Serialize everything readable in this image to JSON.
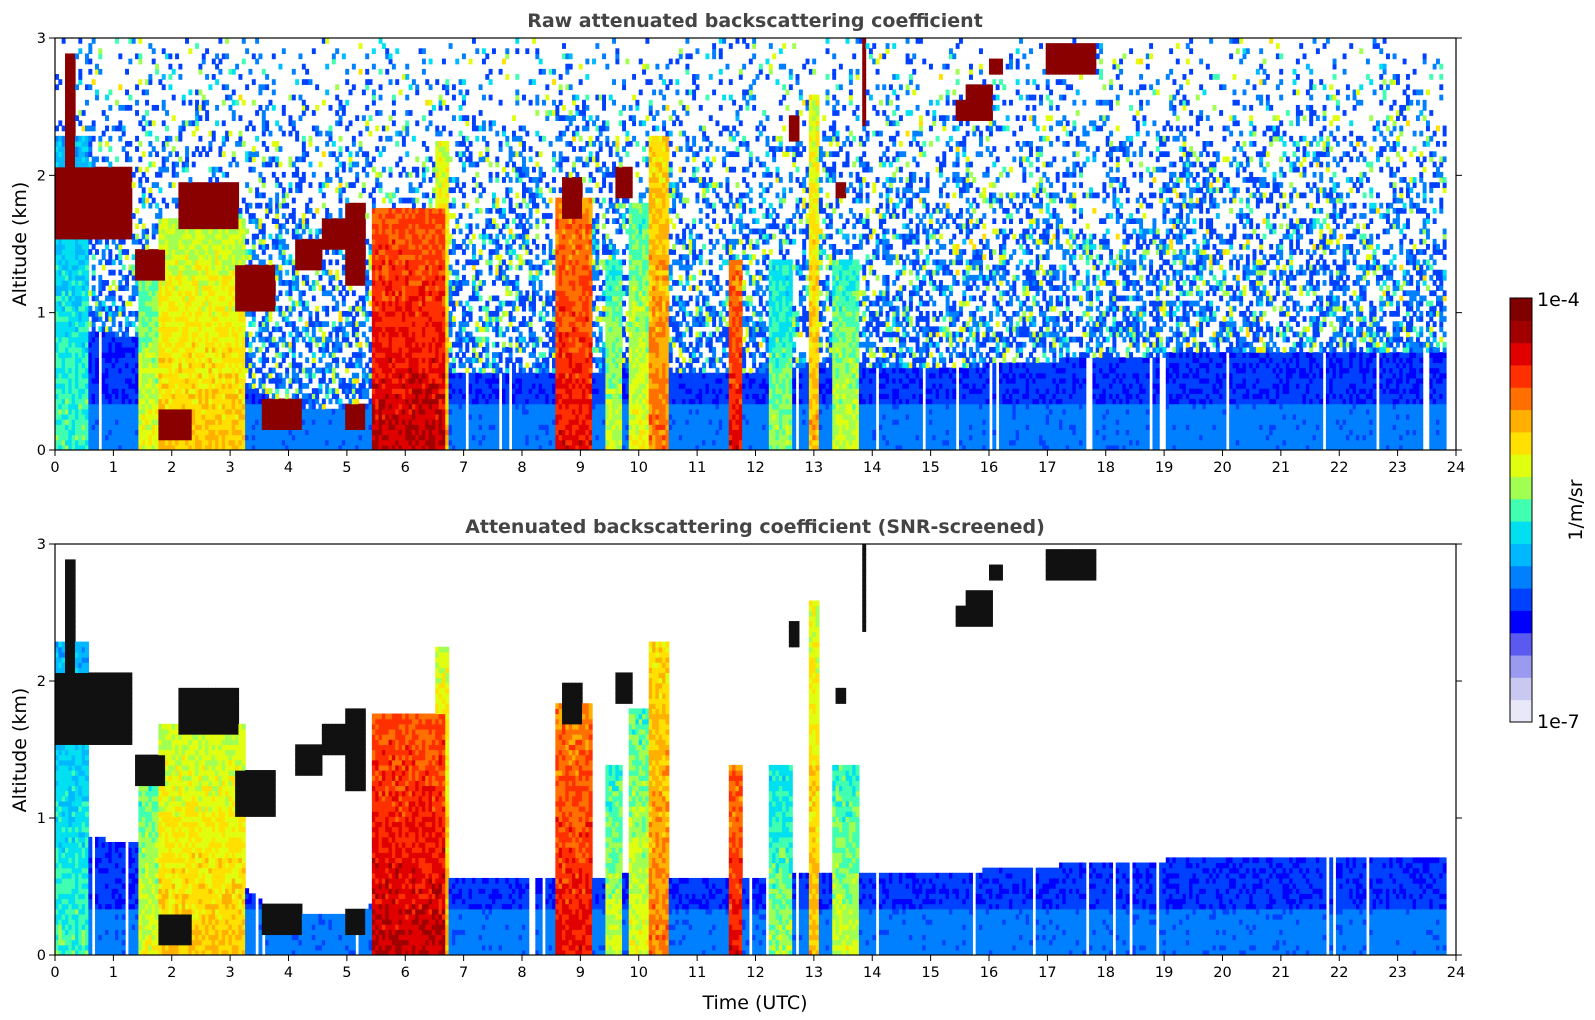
{
  "chart_data": [
    {
      "type": "heatmap",
      "title": "Raw attenuated backscattering coefficient",
      "xlabel": "",
      "ylabel": "Altitude (km)",
      "xlim": [
        0,
        24
      ],
      "ylim": [
        0,
        3
      ],
      "xticks": [
        "0",
        "1",
        "2",
        "3",
        "4",
        "5",
        "6",
        "7",
        "8",
        "9",
        "10",
        "11",
        "12",
        "13",
        "14",
        "15",
        "16",
        "17",
        "18",
        "19",
        "20",
        "21",
        "22",
        "23",
        "24"
      ],
      "yticks": [
        "0",
        "1",
        "2",
        "3"
      ],
      "screened": false,
      "data_end_hour": 23.85,
      "boundary_layer_top_km": [
        [
          0,
          0.9
        ],
        [
          1.5,
          0.8
        ],
        [
          3.2,
          0.5
        ],
        [
          4,
          0.3
        ],
        [
          5,
          0.3
        ],
        [
          6.7,
          0.55
        ],
        [
          8,
          0.55
        ],
        [
          9,
          0.55
        ],
        [
          10,
          0.6
        ],
        [
          11,
          0.55
        ],
        [
          12,
          0.55
        ],
        [
          13,
          0.6
        ],
        [
          14,
          0.6
        ],
        [
          16,
          0.62
        ],
        [
          18,
          0.68
        ],
        [
          21,
          0.72
        ],
        [
          23.9,
          0.72
        ]
      ],
      "aerosol_columns": [
        {
          "x0": 0.0,
          "x1": 0.55,
          "top_km": 2.3,
          "level": 0.5
        },
        {
          "x0": 1.45,
          "x1": 1.75,
          "top_km": 1.3,
          "level": 0.62
        },
        {
          "x0": 1.75,
          "x1": 3.25,
          "top_km": 1.7,
          "level": 0.7
        },
        {
          "x0": 5.45,
          "x1": 6.7,
          "top_km": 1.75,
          "level": 0.92
        },
        {
          "x0": 6.5,
          "x1": 6.75,
          "top_km": 2.25,
          "level": 0.72
        },
        {
          "x0": 8.6,
          "x1": 9.2,
          "top_km": 1.85,
          "level": 0.88
        },
        {
          "x0": 9.45,
          "x1": 9.7,
          "top_km": 1.4,
          "level": 0.6
        },
        {
          "x0": 9.85,
          "x1": 10.45,
          "top_km": 1.8,
          "level": 0.62
        },
        {
          "x0": 10.2,
          "x1": 10.5,
          "top_km": 2.3,
          "level": 0.78
        },
        {
          "x0": 11.55,
          "x1": 11.75,
          "top_km": 1.4,
          "level": 0.88
        },
        {
          "x0": 12.25,
          "x1": 12.6,
          "top_km": 1.4,
          "level": 0.56
        },
        {
          "x0": 12.9,
          "x1": 13.1,
          "top_km": 2.6,
          "level": 0.72
        },
        {
          "x0": 13.3,
          "x1": 13.75,
          "top_km": 1.4,
          "level": 0.6
        }
      ],
      "cloud_patches": [
        {
          "x0": 0.2,
          "x1": 0.35,
          "y0": 1.7,
          "y1": 2.9
        },
        {
          "x0": 0.0,
          "x1": 1.3,
          "y0": 1.55,
          "y1": 2.05
        },
        {
          "x0": 1.4,
          "x1": 1.9,
          "y0": 1.25,
          "y1": 1.45
        },
        {
          "x0": 2.1,
          "x1": 3.15,
          "y0": 1.6,
          "y1": 1.95
        },
        {
          "x0": 3.1,
          "x1": 3.75,
          "y0": 1.0,
          "y1": 1.35
        },
        {
          "x0": 1.75,
          "x1": 2.35,
          "y0": 0.08,
          "y1": 0.3
        },
        {
          "x0": 3.55,
          "x1": 4.25,
          "y0": 0.15,
          "y1": 0.38
        },
        {
          "x0": 4.1,
          "x1": 4.55,
          "y0": 1.3,
          "y1": 1.55
        },
        {
          "x0": 4.6,
          "x1": 4.95,
          "y0": 1.45,
          "y1": 1.7
        },
        {
          "x0": 5.0,
          "x1": 5.3,
          "y0": 1.2,
          "y1": 1.8
        },
        {
          "x0": 4.95,
          "x1": 5.3,
          "y0": 0.15,
          "y1": 0.35
        },
        {
          "x0": 8.7,
          "x1": 9.0,
          "y0": 1.7,
          "y1": 2.0
        },
        {
          "x0": 9.6,
          "x1": 9.9,
          "y0": 1.85,
          "y1": 2.05
        },
        {
          "x0": 12.6,
          "x1": 12.75,
          "y0": 2.25,
          "y1": 2.45
        },
        {
          "x0": 13.35,
          "x1": 13.55,
          "y0": 1.85,
          "y1": 1.95
        },
        {
          "x0": 13.8,
          "x1": 13.9,
          "y0": 2.35,
          "y1": 3.0
        },
        {
          "x0": 15.4,
          "x1": 15.6,
          "y0": 2.4,
          "y1": 2.55
        },
        {
          "x0": 15.6,
          "x1": 16.05,
          "y0": 2.4,
          "y1": 2.65
        },
        {
          "x0": 16.0,
          "x1": 16.25,
          "y0": 2.75,
          "y1": 2.85
        },
        {
          "x0": 17.0,
          "x1": 17.85,
          "y0": 2.75,
          "y1": 2.95
        }
      ]
    },
    {
      "type": "heatmap",
      "title": "Attenuated backscattering coefficient (SNR-screened)",
      "xlabel": "Time (UTC)",
      "ylabel": "Altitude (km)",
      "xlim": [
        0,
        24
      ],
      "ylim": [
        0,
        3
      ],
      "xticks": [
        "0",
        "1",
        "2",
        "3",
        "4",
        "5",
        "6",
        "7",
        "8",
        "9",
        "10",
        "11",
        "12",
        "13",
        "14",
        "15",
        "16",
        "17",
        "18",
        "19",
        "20",
        "21",
        "22",
        "23",
        "24"
      ],
      "yticks": [
        "0",
        "1",
        "2",
        "3"
      ],
      "screened": true
    }
  ],
  "colorbar": {
    "label": "1/m/sr",
    "max_label": "1e-4",
    "min_label": "1e-7",
    "colormap": [
      "#e8e8f8",
      "#c8c8f0",
      "#9a9af0",
      "#5a5af0",
      "#0000ff",
      "#0040ff",
      "#0080ff",
      "#00b8ff",
      "#00e0f0",
      "#40ffb0",
      "#a0ff50",
      "#e0ff10",
      "#ffe000",
      "#ffb000",
      "#ff7000",
      "#ff3000",
      "#e00000",
      "#a00000",
      "#800000"
    ]
  }
}
